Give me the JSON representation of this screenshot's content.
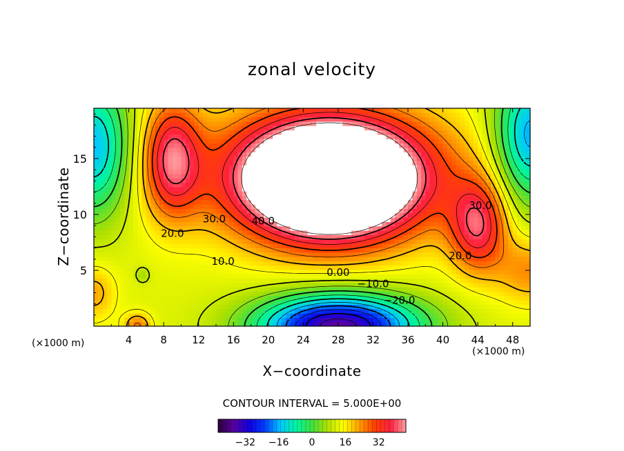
{
  "chart_data": {
    "type": "heatmap",
    "title": "zonal velocity",
    "xlabel": "X−coordinate",
    "ylabel": "Z−coordinate",
    "x_unit": "(×1000 m)",
    "xlim": [
      0,
      50
    ],
    "ylim": [
      0,
      19.5
    ],
    "x_ticks": [
      4,
      8,
      12,
      16,
      20,
      24,
      28,
      32,
      36,
      40,
      44,
      48
    ],
    "y_ticks": [
      5,
      10,
      15
    ],
    "contour_interval_label": "CONTOUR INTERVAL = 5.000E+00",
    "colorbar": {
      "min": -45,
      "max": 45,
      "ticks": [
        -32,
        -16,
        0,
        16,
        32
      ],
      "tick_labels": [
        "−32",
        "−16",
        "0",
        "16",
        "32"
      ]
    },
    "contour_labels": [
      {
        "text": "20.0",
        "x": 9.0,
        "z": 8.0
      },
      {
        "text": "30.0",
        "x": 13.8,
        "z": 9.3
      },
      {
        "text": "40.0",
        "x": 19.4,
        "z": 9.1
      },
      {
        "text": "10.0",
        "x": 14.8,
        "z": 5.5
      },
      {
        "text": "0.00",
        "x": 28.0,
        "z": 4.5
      },
      {
        "text": "−10.0",
        "x": 32.0,
        "z": 3.5
      },
      {
        "text": "−20.0",
        "x": 35.0,
        "z": 2.0
      },
      {
        "text": "20.0",
        "x": 42.0,
        "z": 6.0
      },
      {
        "text": "30.0",
        "x": 44.3,
        "z": 10.5
      }
    ],
    "features": {
      "jet_max": {
        "x": 27,
        "z": 13,
        "value": 65
      },
      "surface_min": {
        "x": 28,
        "z": 0,
        "value": -42
      },
      "left_max": {
        "x": 9,
        "z": 15,
        "value": 40
      },
      "right_max": {
        "x": 44,
        "z": 9,
        "value": 40
      },
      "small_max": {
        "x": 5,
        "z": 0,
        "value": 30
      },
      "small_min": {
        "x": 5.6,
        "z": 4.6,
        "value": 8
      }
    }
  },
  "colors": {
    "stops": [
      "#2a003d",
      "#5a00a0",
      "#1000e0",
      "#0040ff",
      "#00c8ff",
      "#00f5a0",
      "#40e040",
      "#b0e000",
      "#ffff00",
      "#ffa000",
      "#ff4000",
      "#ff2040",
      "#ffa0a0"
    ],
    "blank": "#ffffff",
    "axis": "#000000"
  }
}
